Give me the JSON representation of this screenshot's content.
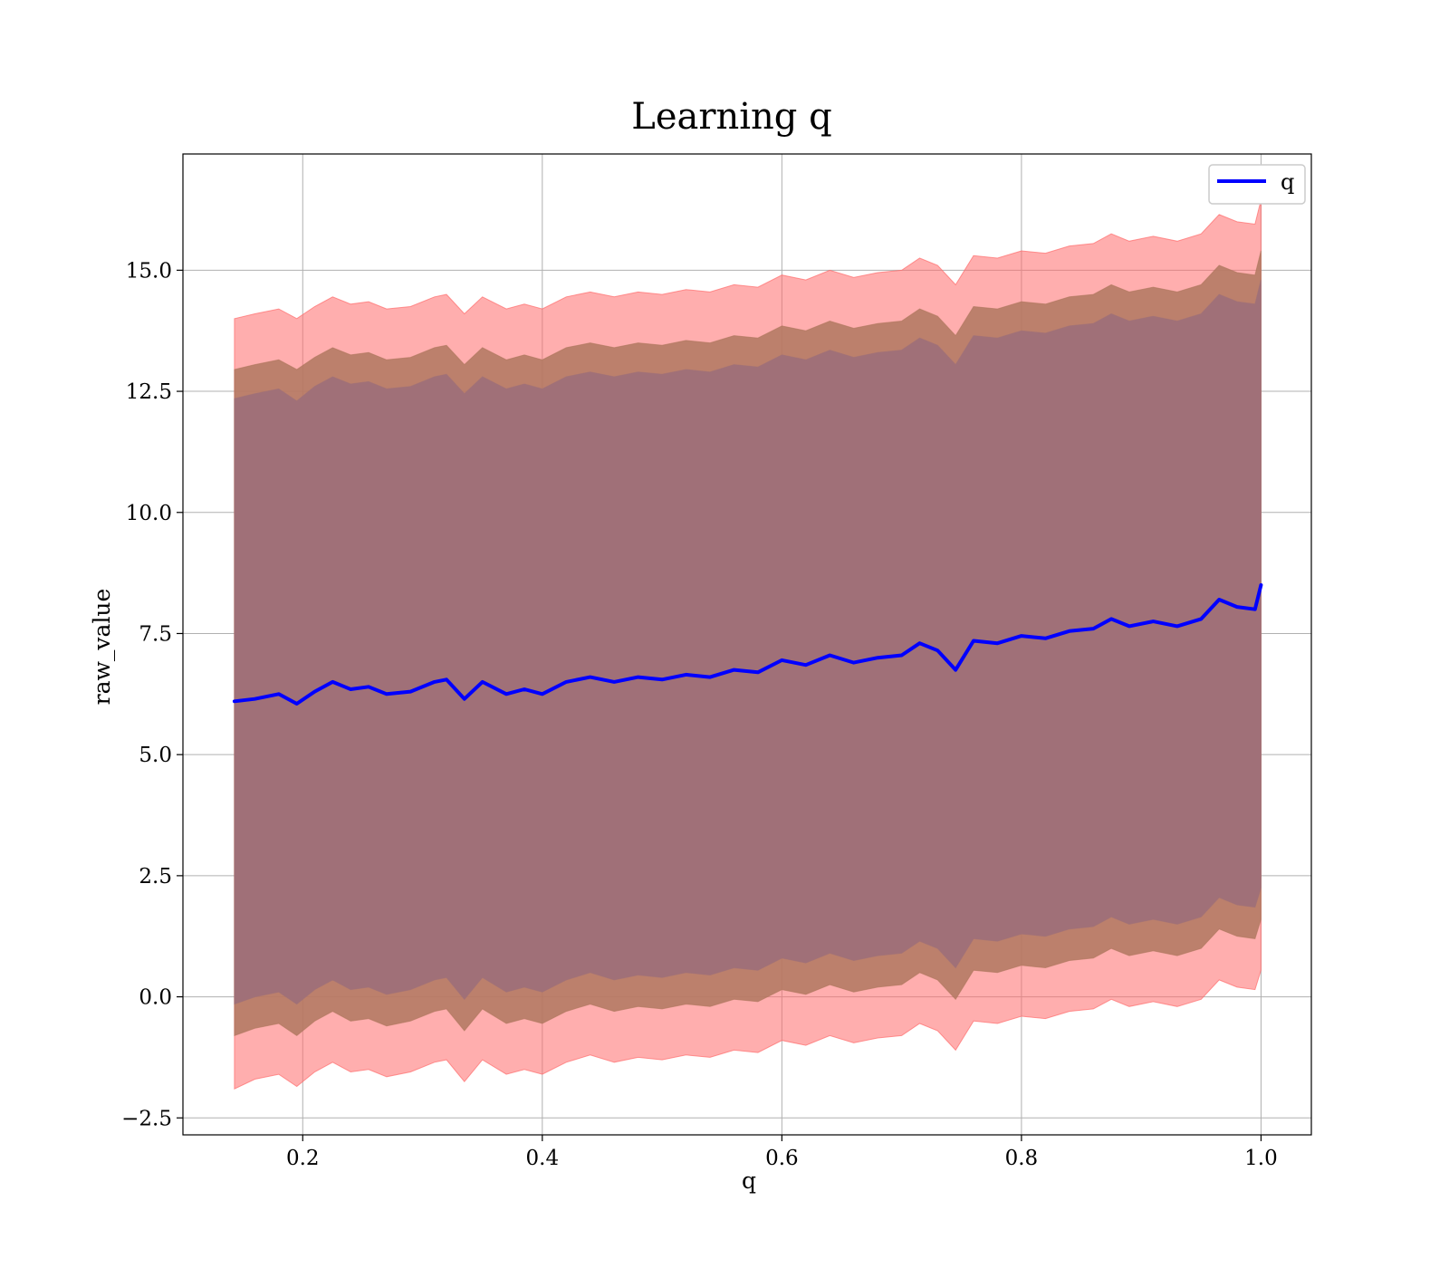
{
  "chart_data": {
    "type": "line",
    "title": "Learning q",
    "xlabel": "q",
    "ylabel": "raw_value",
    "xlim": [
      0.1,
      1.042
    ],
    "ylim": [
      -2.85,
      17.4
    ],
    "xticks": [
      0.2,
      0.4,
      0.6,
      0.8,
      1.0
    ],
    "xtick_labels": [
      "0.2",
      "0.4",
      "0.6",
      "0.8",
      "1.0"
    ],
    "yticks": [
      -2.5,
      0.0,
      2.5,
      5.0,
      7.5,
      10.0,
      12.5,
      15.0
    ],
    "ytick_labels": [
      "−2.5",
      "0.0",
      "2.5",
      "5.0",
      "7.5",
      "10.0",
      "12.5",
      "15.0"
    ],
    "grid": true,
    "legend": {
      "position": "top-right",
      "entries": [
        "q"
      ]
    },
    "colors": {
      "line": "#0000ff",
      "outer_band": "#ff6b6b",
      "middle_band": "#b07860",
      "inner_band": "#a07078"
    },
    "series": [
      {
        "name": "q",
        "x": [
          0.143,
          0.16,
          0.18,
          0.195,
          0.21,
          0.225,
          0.24,
          0.255,
          0.27,
          0.29,
          0.31,
          0.32,
          0.335,
          0.35,
          0.37,
          0.385,
          0.4,
          0.42,
          0.44,
          0.46,
          0.48,
          0.5,
          0.52,
          0.54,
          0.56,
          0.58,
          0.6,
          0.62,
          0.64,
          0.66,
          0.68,
          0.7,
          0.715,
          0.73,
          0.745,
          0.76,
          0.78,
          0.8,
          0.82,
          0.84,
          0.86,
          0.875,
          0.89,
          0.91,
          0.93,
          0.95,
          0.965,
          0.98,
          0.995,
          1.0
        ],
        "y": [
          6.1,
          6.15,
          6.25,
          6.05,
          6.3,
          6.5,
          6.35,
          6.4,
          6.25,
          6.3,
          6.5,
          6.55,
          6.15,
          6.5,
          6.25,
          6.35,
          6.25,
          6.5,
          6.6,
          6.5,
          6.6,
          6.55,
          6.65,
          6.6,
          6.75,
          6.7,
          6.95,
          6.85,
          7.05,
          6.9,
          7.0,
          7.05,
          7.3,
          7.15,
          6.75,
          7.35,
          7.3,
          7.45,
          7.4,
          7.55,
          7.6,
          7.8,
          7.65,
          7.75,
          7.65,
          7.8,
          8.2,
          8.05,
          8.0,
          8.5
        ]
      }
    ],
    "bands": [
      {
        "lower": [
          -1.9,
          -1.7,
          -1.6,
          -1.85,
          -1.55,
          -1.35,
          -1.55,
          -1.5,
          -1.65,
          -1.55,
          -1.35,
          -1.3,
          -1.75,
          -1.3,
          -1.6,
          -1.5,
          -1.6,
          -1.35,
          -1.2,
          -1.35,
          -1.25,
          -1.3,
          -1.2,
          -1.25,
          -1.1,
          -1.15,
          -0.9,
          -1.0,
          -0.8,
          -0.95,
          -0.85,
          -0.8,
          -0.55,
          -0.7,
          -1.1,
          -0.5,
          -0.55,
          -0.4,
          -0.45,
          -0.3,
          -0.25,
          -0.05,
          -0.2,
          -0.1,
          -0.2,
          -0.05,
          0.35,
          0.2,
          0.15,
          0.55
        ],
        "upper": [
          14.0,
          14.1,
          14.2,
          14.0,
          14.25,
          14.45,
          14.3,
          14.35,
          14.2,
          14.25,
          14.45,
          14.5,
          14.1,
          14.45,
          14.2,
          14.3,
          14.2,
          14.45,
          14.55,
          14.45,
          14.55,
          14.5,
          14.6,
          14.55,
          14.7,
          14.65,
          14.9,
          14.8,
          15.0,
          14.85,
          14.95,
          15.0,
          15.25,
          15.1,
          14.7,
          15.3,
          15.25,
          15.4,
          15.35,
          15.5,
          15.55,
          15.75,
          15.6,
          15.7,
          15.6,
          15.75,
          16.15,
          16.0,
          15.95,
          16.45
        ]
      },
      {
        "lower": [
          -0.8,
          -0.65,
          -0.55,
          -0.8,
          -0.5,
          -0.3,
          -0.5,
          -0.45,
          -0.6,
          -0.5,
          -0.3,
          -0.25,
          -0.7,
          -0.25,
          -0.55,
          -0.45,
          -0.55,
          -0.3,
          -0.15,
          -0.3,
          -0.2,
          -0.25,
          -0.15,
          -0.2,
          -0.05,
          -0.1,
          0.15,
          0.05,
          0.25,
          0.1,
          0.2,
          0.25,
          0.5,
          0.35,
          -0.05,
          0.55,
          0.5,
          0.65,
          0.6,
          0.75,
          0.8,
          1.0,
          0.85,
          0.95,
          0.85,
          1.0,
          1.4,
          1.25,
          1.2,
          1.6
        ],
        "upper": [
          12.95,
          13.05,
          13.15,
          12.95,
          13.2,
          13.4,
          13.25,
          13.3,
          13.15,
          13.2,
          13.4,
          13.45,
          13.05,
          13.4,
          13.15,
          13.25,
          13.15,
          13.4,
          13.5,
          13.4,
          13.5,
          13.45,
          13.55,
          13.5,
          13.65,
          13.6,
          13.85,
          13.75,
          13.95,
          13.8,
          13.9,
          13.95,
          14.2,
          14.05,
          13.65,
          14.25,
          14.2,
          14.35,
          14.3,
          14.45,
          14.5,
          14.7,
          14.55,
          14.65,
          14.55,
          14.7,
          15.1,
          14.95,
          14.9,
          15.4
        ]
      },
      {
        "lower": [
          -0.15,
          0.0,
          0.1,
          -0.15,
          0.15,
          0.35,
          0.15,
          0.2,
          0.05,
          0.15,
          0.35,
          0.4,
          -0.05,
          0.4,
          0.1,
          0.2,
          0.1,
          0.35,
          0.5,
          0.35,
          0.45,
          0.4,
          0.5,
          0.45,
          0.6,
          0.55,
          0.8,
          0.7,
          0.9,
          0.75,
          0.85,
          0.9,
          1.15,
          1.0,
          0.6,
          1.2,
          1.15,
          1.3,
          1.25,
          1.4,
          1.45,
          1.65,
          1.5,
          1.6,
          1.5,
          1.65,
          2.05,
          1.9,
          1.85,
          2.25
        ],
        "upper": [
          12.35,
          12.45,
          12.55,
          12.3,
          12.6,
          12.8,
          12.65,
          12.7,
          12.55,
          12.6,
          12.8,
          12.85,
          12.45,
          12.8,
          12.55,
          12.65,
          12.55,
          12.8,
          12.9,
          12.8,
          12.9,
          12.85,
          12.95,
          12.9,
          13.05,
          13.0,
          13.25,
          13.15,
          13.35,
          13.2,
          13.3,
          13.35,
          13.6,
          13.45,
          13.05,
          13.65,
          13.6,
          13.75,
          13.7,
          13.85,
          13.9,
          14.1,
          13.95,
          14.05,
          13.95,
          14.1,
          14.5,
          14.35,
          14.3,
          14.8
        ]
      }
    ]
  }
}
